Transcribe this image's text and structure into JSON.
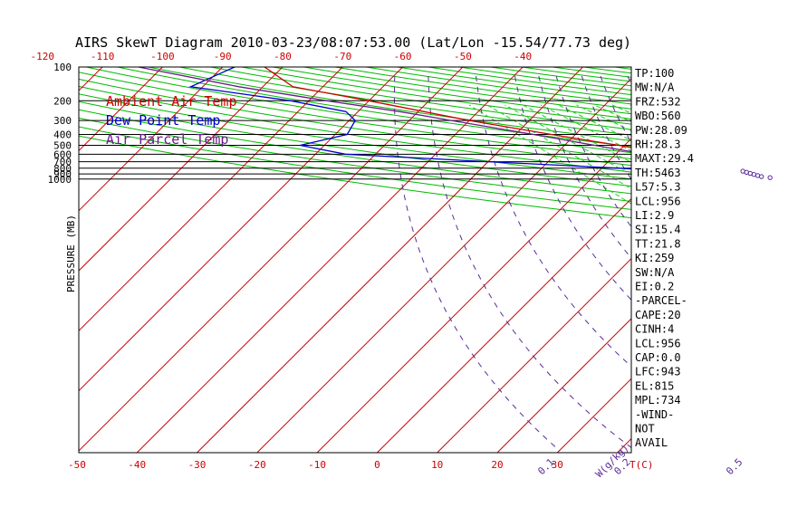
{
  "title": "AIRS SkewT Diagram 2010-03-23/08:07:53.00 (Lat/Lon -15.54/77.73 deg)",
  "legend": [
    {
      "label": "Ambient Air Temp",
      "color": "#cc0000"
    },
    {
      "label": "Dew Point Temp",
      "color": "#0000cc"
    },
    {
      "label": "Air Parcel Temp",
      "color": "#6a1a8a"
    }
  ],
  "colors": {
    "isotherm": "#cc0000",
    "dry_adiabat": "#00bb00",
    "moist_adiabat": "#22cc22",
    "mixing_ratio": "#5a2a9a",
    "isobar": "#000000",
    "axis_label": "#cc0000",
    "pressure_label": "#000000"
  },
  "chart_data": {
    "type": "line",
    "title": "AIRS SkewT Diagram 2010-03-23/08:07:53.00 (Lat/Lon -15.54/77.73 deg)",
    "ylabel": "PRESSURE (MB)",
    "xlabel_unit": "T(C)",
    "mixing_ratio_unit": "W(g/kg)",
    "y_scale": "log",
    "ylim": [
      1050,
      100
    ],
    "pressure_ticks": [
      100,
      200,
      300,
      400,
      500,
      600,
      700,
      800,
      900,
      1000
    ],
    "top_temp_ticks": [
      -120,
      -110,
      -100,
      -90,
      -80,
      -70,
      -60,
      -50,
      -40
    ],
    "bottom_temp_ticks": [
      -50,
      -40,
      -30,
      -20,
      -10,
      0,
      10,
      20,
      30
    ],
    "mixing_ratio_labels": [
      "0.1",
      "0.2",
      "0.5",
      "1",
      "1.5",
      "2",
      "3",
      "4",
      "6",
      "8",
      "10",
      "12",
      "15",
      "20",
      "25",
      "30"
    ],
    "series": [
      {
        "name": "Ambient Air Temp",
        "color": "#cc0000",
        "points": [
          {
            "p": 100,
            "t": -83
          },
          {
            "p": 150,
            "t": -75
          },
          {
            "p": 200,
            "t": -60
          },
          {
            "p": 250,
            "t": -49
          },
          {
            "p": 300,
            "t": -40
          },
          {
            "p": 400,
            "t": -24
          },
          {
            "p": 500,
            "t": -11
          },
          {
            "p": 600,
            "t": -1
          },
          {
            "p": 700,
            "t": 6
          },
          {
            "p": 800,
            "t": 12
          },
          {
            "p": 900,
            "t": 16
          },
          {
            "p": 950,
            "t": 18
          },
          {
            "p": 1000,
            "t": 22
          }
        ]
      },
      {
        "name": "Dew Point Temp",
        "color": "#0000cc",
        "points": [
          {
            "p": 100,
            "t": -88
          },
          {
            "p": 150,
            "t": -92
          },
          {
            "p": 200,
            "t": -73
          },
          {
            "p": 250,
            "t": -62
          },
          {
            "p": 300,
            "t": -59
          },
          {
            "p": 400,
            "t": -58
          },
          {
            "p": 500,
            "t": -64
          },
          {
            "p": 600,
            "t": -55
          },
          {
            "p": 700,
            "t": -30
          },
          {
            "p": 800,
            "t": -7
          },
          {
            "p": 900,
            "t": 9
          },
          {
            "p": 950,
            "t": 14
          },
          {
            "p": 1000,
            "t": 19
          }
        ]
      },
      {
        "name": "Air Parcel Temp",
        "color": "#6a1a8a",
        "points": [
          {
            "p": 100,
            "t": -104
          },
          {
            "p": 150,
            "t": -84
          },
          {
            "p": 200,
            "t": -67
          },
          {
            "p": 250,
            "t": -53
          },
          {
            "p": 300,
            "t": -43
          },
          {
            "p": 400,
            "t": -27
          },
          {
            "p": 500,
            "t": -15
          },
          {
            "p": 600,
            "t": -5
          },
          {
            "p": 700,
            "t": 3
          },
          {
            "p": 800,
            "t": 10
          },
          {
            "p": 900,
            "t": 15
          },
          {
            "p": 956,
            "t": 18
          },
          {
            "p": 1000,
            "t": 22
          }
        ]
      }
    ],
    "indices": [
      "TP:100",
      "MW:N/A",
      "FRZ:532",
      "WBO:560",
      "PW:28.09",
      "RH:28.3",
      "MAXT:29.4",
      "TH:5463",
      "L57:5.3",
      "LCL:956",
      "LI:2.9",
      "SI:15.4",
      "TT:21.8",
      "KI:259",
      "SW:N/A",
      "EI:0.2",
      "-PARCEL-",
      "CAPE:20",
      "CINH:4",
      "LCL:956",
      "CAP:0.0",
      "LFC:943",
      "EL:815",
      "MPL:734",
      "-WIND-",
      "NOT",
      "AVAIL"
    ]
  }
}
